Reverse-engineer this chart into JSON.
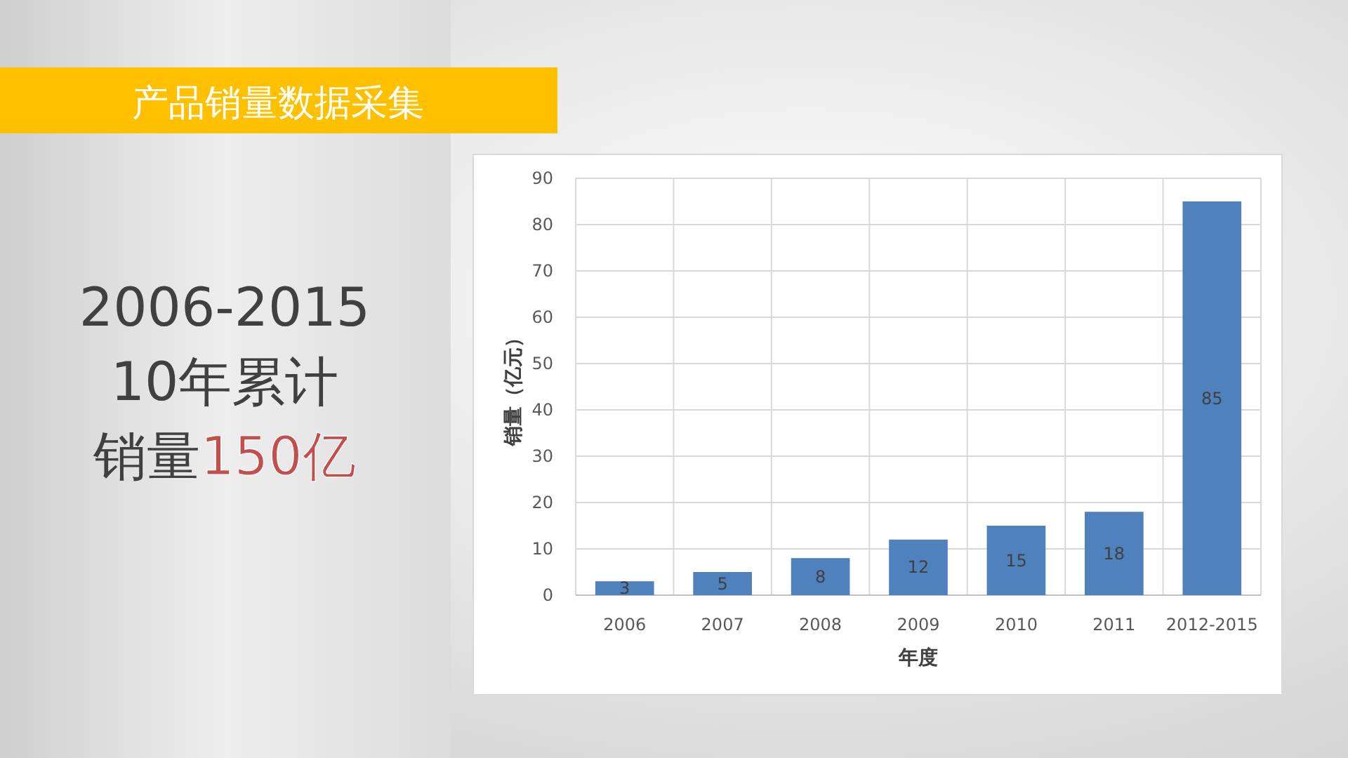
{
  "chart_data": {
    "type": "bar",
    "title": "产品销量数据采集",
    "xlabel": "年度",
    "ylabel": "销量（亿元）",
    "categories": [
      "2006",
      "2007",
      "2008",
      "2009",
      "2010",
      "2011",
      "2012-2015"
    ],
    "values": [
      3,
      5,
      8,
      12,
      15,
      18,
      85
    ],
    "color": "#4f81bd",
    "ylim": [
      0,
      90
    ],
    "yticks": [
      0,
      10,
      20,
      30,
      40,
      50,
      60,
      70,
      80,
      90
    ],
    "grid": true,
    "data_labels": true,
    "annotations": [
      "2006-2015",
      "10年累计",
      "销量",
      "150亿"
    ]
  }
}
